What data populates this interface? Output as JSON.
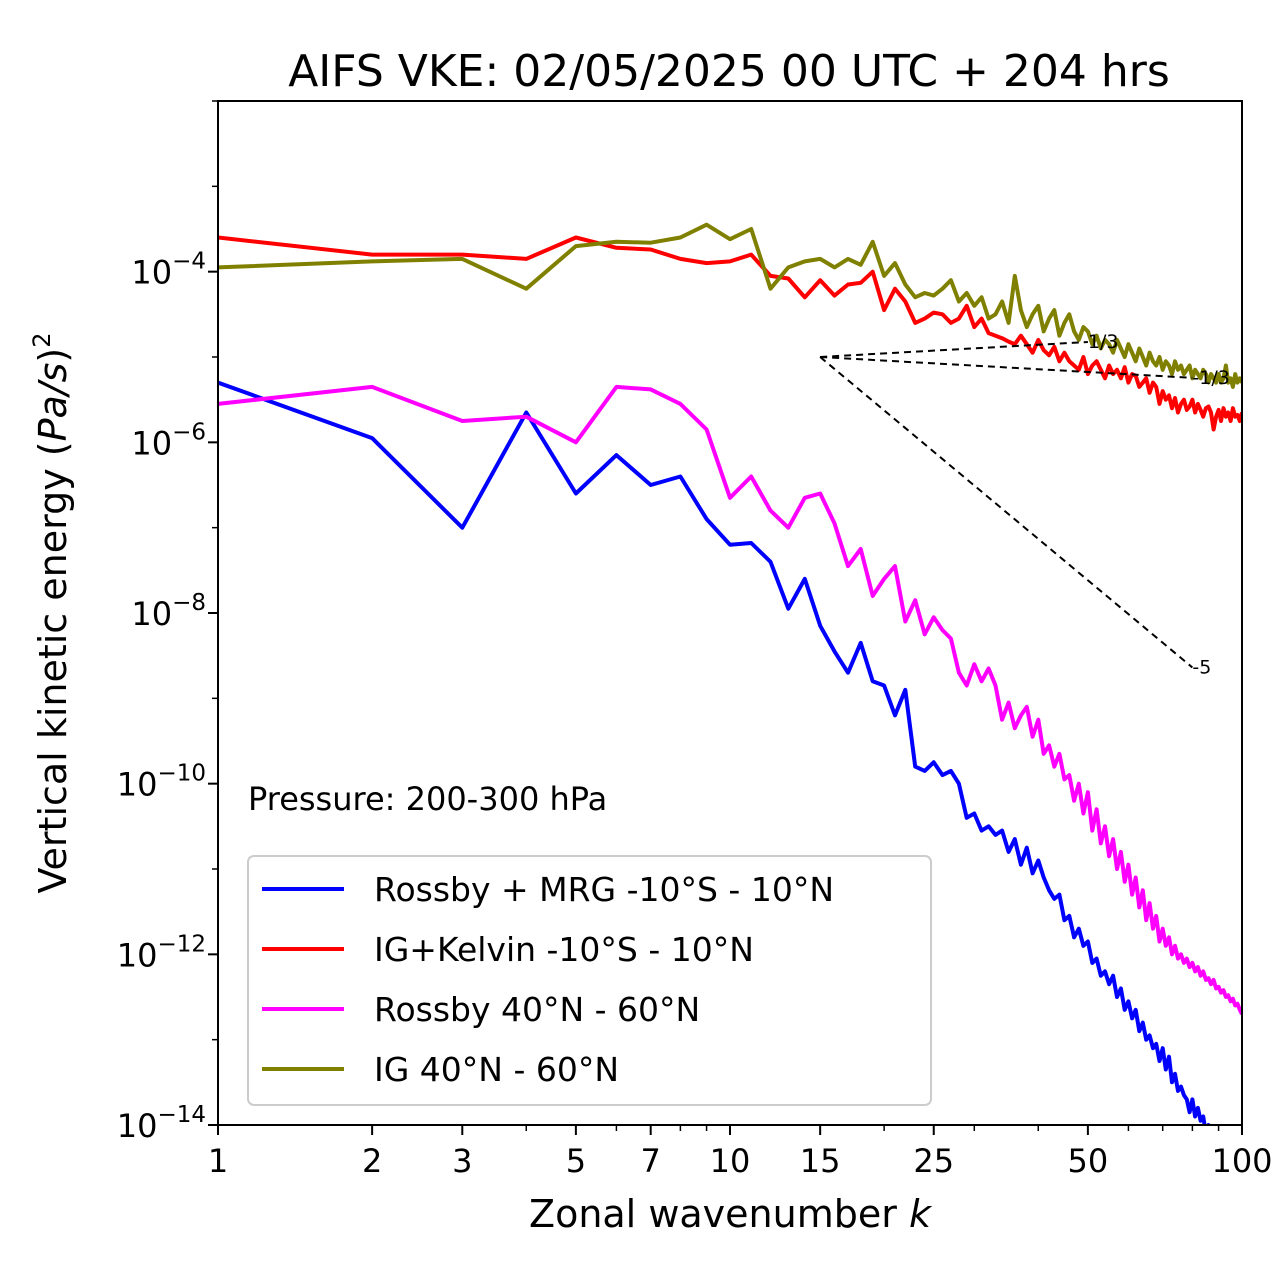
{
  "chart_data": {
    "type": "line",
    "title": "AIFS VKE: 02/05/2025 00 UTC + 204 hrs",
    "xlabel_main": "Zonal wavenumber ",
    "xlabel_var": "k",
    "ylabel_main": "Vertical kinetic energy (",
    "ylabel_var": "Pa/s",
    "ylabel_close": ")",
    "ylabel_exp": "2",
    "xscale": "log",
    "yscale": "log",
    "xlim": [
      1,
      100
    ],
    "ylim": [
      1e-14,
      0.01
    ],
    "xticks": [
      {
        "value": 1,
        "label": "1"
      },
      {
        "value": 2,
        "label": "2"
      },
      {
        "value": 3,
        "label": "3"
      },
      {
        "value": 5,
        "label": "5"
      },
      {
        "value": 7,
        "label": "7"
      },
      {
        "value": 10,
        "label": "10"
      },
      {
        "value": 15,
        "label": "15"
      },
      {
        "value": 25,
        "label": "25"
      },
      {
        "value": 50,
        "label": "50"
      },
      {
        "value": 100,
        "label": "100"
      }
    ],
    "yticks": [
      {
        "exp": -4,
        "base": "10",
        "sup": "−4"
      },
      {
        "exp": -6,
        "base": "10",
        "sup": "−6"
      },
      {
        "exp": -8,
        "base": "10",
        "sup": "−8"
      },
      {
        "exp": -10,
        "base": "10",
        "sup": "−10"
      },
      {
        "exp": -12,
        "base": "10",
        "sup": "−12"
      },
      {
        "exp": -14,
        "base": "10",
        "sup": "−14"
      }
    ],
    "annotation": "Pressure: 200-300 hPa",
    "legend_position": "lower-left",
    "series": [
      {
        "name": "Rossby + MRG -10°S - 10°N",
        "color": "#0000ff",
        "log10_y": [
          -5.3,
          -5.95,
          -7.0,
          -5.65,
          -6.6,
          -6.15,
          -6.5,
          -6.4,
          -6.9,
          -7.2,
          -7.18,
          -7.4,
          -7.95,
          -7.6,
          -8.15,
          -8.45,
          -8.7,
          -8.35,
          -8.8,
          -8.85,
          -9.2,
          -8.9,
          -9.8,
          -9.85,
          -9.75,
          -9.9,
          -9.85,
          -10.0,
          -10.4,
          -10.35,
          -10.55,
          -10.5,
          -10.6,
          -10.55,
          -10.8,
          -10.65,
          -10.95,
          -10.75,
          -11.05,
          -10.9,
          -11.1,
          -11.25,
          -11.35,
          -11.3,
          -11.6,
          -11.55,
          -11.8,
          -11.7,
          -11.9,
          -11.85,
          -12.1,
          -12.05,
          -12.25,
          -12.2,
          -12.35,
          -12.25,
          -12.5,
          -12.4,
          -12.65,
          -12.55,
          -12.75,
          -12.65,
          -12.9,
          -12.8,
          -13.0,
          -12.95,
          -13.1,
          -13.05,
          -13.25,
          -13.1,
          -13.35,
          -13.2,
          -13.5,
          -13.4,
          -13.6,
          -13.55,
          -13.65,
          -13.7,
          -13.85,
          -13.7,
          -13.9,
          -13.8,
          -13.95,
          -13.9,
          -14.1,
          -14.0,
          -14.15,
          -14.1,
          -14.2,
          -14.25,
          -14.3,
          -14.35,
          -14.4,
          -14.45,
          -14.5,
          -14.55,
          -14.6,
          -14.65,
          -14.7,
          -14.8
        ]
      },
      {
        "name": "IG+Kelvin -10°S - 10°N",
        "color": "#ff0000",
        "log10_y": [
          -3.6,
          -3.8,
          -3.8,
          -3.85,
          -3.6,
          -3.72,
          -3.74,
          -3.85,
          -3.9,
          -3.88,
          -3.8,
          -4.05,
          -4.08,
          -4.3,
          -4.1,
          -4.28,
          -4.15,
          -4.13,
          -4.0,
          -4.45,
          -4.2,
          -4.35,
          -4.6,
          -4.55,
          -4.48,
          -4.5,
          -4.6,
          -4.55,
          -4.4,
          -4.65,
          -4.55,
          -4.72,
          -4.75,
          -4.78,
          -4.82,
          -4.85,
          -4.75,
          -4.85,
          -4.95,
          -4.8,
          -4.92,
          -4.98,
          -4.88,
          -5.05,
          -4.95,
          -5.05,
          -5.1,
          -5.15,
          -5.0,
          -5.2,
          -5.1,
          -5.05,
          -5.15,
          -5.25,
          -5.1,
          -5.2,
          -5.15,
          -5.25,
          -5.12,
          -5.3,
          -5.2,
          -5.22,
          -5.35,
          -5.3,
          -5.25,
          -5.42,
          -5.3,
          -5.35,
          -5.55,
          -5.4,
          -5.5,
          -5.45,
          -5.6,
          -5.48,
          -5.65,
          -5.55,
          -5.5,
          -5.62,
          -5.58,
          -5.5,
          -5.65,
          -5.55,
          -5.62,
          -5.7,
          -5.6,
          -5.58,
          -5.65,
          -5.85,
          -5.7,
          -5.62,
          -5.75,
          -5.6,
          -5.7,
          -5.65,
          -5.75,
          -5.6,
          -5.7,
          -5.68,
          -5.75,
          -5.65
        ]
      },
      {
        "name": "Rossby 40°N - 60°N",
        "color": "#ff00ff",
        "log10_y": [
          -5.55,
          -5.35,
          -5.75,
          -5.7,
          -6.0,
          -5.35,
          -5.38,
          -5.55,
          -5.85,
          -6.65,
          -6.4,
          -6.8,
          -7.0,
          -6.65,
          -6.6,
          -6.95,
          -7.45,
          -7.25,
          -7.8,
          -7.6,
          -7.45,
          -8.1,
          -7.85,
          -8.25,
          -8.05,
          -8.2,
          -8.3,
          -8.7,
          -8.85,
          -8.6,
          -8.8,
          -8.65,
          -8.85,
          -9.25,
          -9.05,
          -9.35,
          -9.2,
          -9.1,
          -9.45,
          -9.25,
          -9.65,
          -9.55,
          -9.8,
          -9.65,
          -9.95,
          -9.9,
          -10.2,
          -10.0,
          -10.35,
          -10.1,
          -10.55,
          -10.3,
          -10.7,
          -10.5,
          -10.85,
          -10.65,
          -11.0,
          -10.8,
          -11.15,
          -10.95,
          -11.3,
          -11.1,
          -11.45,
          -11.25,
          -11.6,
          -11.4,
          -11.7,
          -11.55,
          -11.85,
          -11.7,
          -11.9,
          -11.8,
          -12.0,
          -11.9,
          -12.05,
          -12.0,
          -12.1,
          -12.05,
          -12.15,
          -12.1,
          -12.2,
          -12.15,
          -12.25,
          -12.2,
          -12.3,
          -12.28,
          -12.35,
          -12.3,
          -12.4,
          -12.38,
          -12.45,
          -12.42,
          -12.5,
          -12.48,
          -12.55,
          -12.52,
          -12.6,
          -12.58,
          -12.65,
          -12.7
        ]
      },
      {
        "name": "IG 40°N - 60°N",
        "color": "#808000",
        "log10_y": [
          -3.95,
          -3.88,
          -3.85,
          -4.2,
          -3.7,
          -3.65,
          -3.66,
          -3.6,
          -3.45,
          -3.62,
          -3.5,
          -4.2,
          -3.95,
          -3.88,
          -3.85,
          -3.95,
          -3.85,
          -3.92,
          -3.65,
          -4.05,
          -3.9,
          -4.15,
          -4.3,
          -4.25,
          -4.28,
          -4.2,
          -4.1,
          -4.35,
          -4.25,
          -4.4,
          -4.3,
          -4.55,
          -4.5,
          -4.35,
          -4.6,
          -4.05,
          -4.45,
          -4.65,
          -4.5,
          -4.4,
          -4.7,
          -4.55,
          -4.45,
          -4.75,
          -4.6,
          -4.5,
          -4.7,
          -4.8,
          -4.65,
          -4.7,
          -4.85,
          -4.75,
          -4.9,
          -4.8,
          -4.85,
          -4.95,
          -4.8,
          -4.9,
          -5.0,
          -4.85,
          -4.95,
          -5.05,
          -4.9,
          -5.0,
          -5.1,
          -4.95,
          -5.05,
          -5.1,
          -5.0,
          -5.15,
          -5.05,
          -5.1,
          -5.2,
          -5.05,
          -5.15,
          -5.1,
          -5.2,
          -5.15,
          -5.1,
          -5.25,
          -5.15,
          -5.2,
          -5.25,
          -5.15,
          -5.2,
          -5.3,
          -5.2,
          -5.25,
          -5.3,
          -5.2,
          -5.3,
          -5.25,
          -5.1,
          -5.3,
          -5.25,
          -5.35,
          -5.2,
          -5.3,
          -5.25,
          -5.3
        ]
      }
    ],
    "reference_lines": [
      {
        "label": "1/3",
        "x": [
          15,
          50
        ],
        "y": [
          1e-05,
          1.5e-05
        ]
      },
      {
        "label": "-1/3",
        "x": [
          15,
          80
        ],
        "y": [
          1e-05,
          5.7e-06
        ]
      },
      {
        "label": "-5",
        "x": [
          15,
          80
        ],
        "y": [
          1e-05,
          2.3e-09
        ]
      }
    ]
  }
}
